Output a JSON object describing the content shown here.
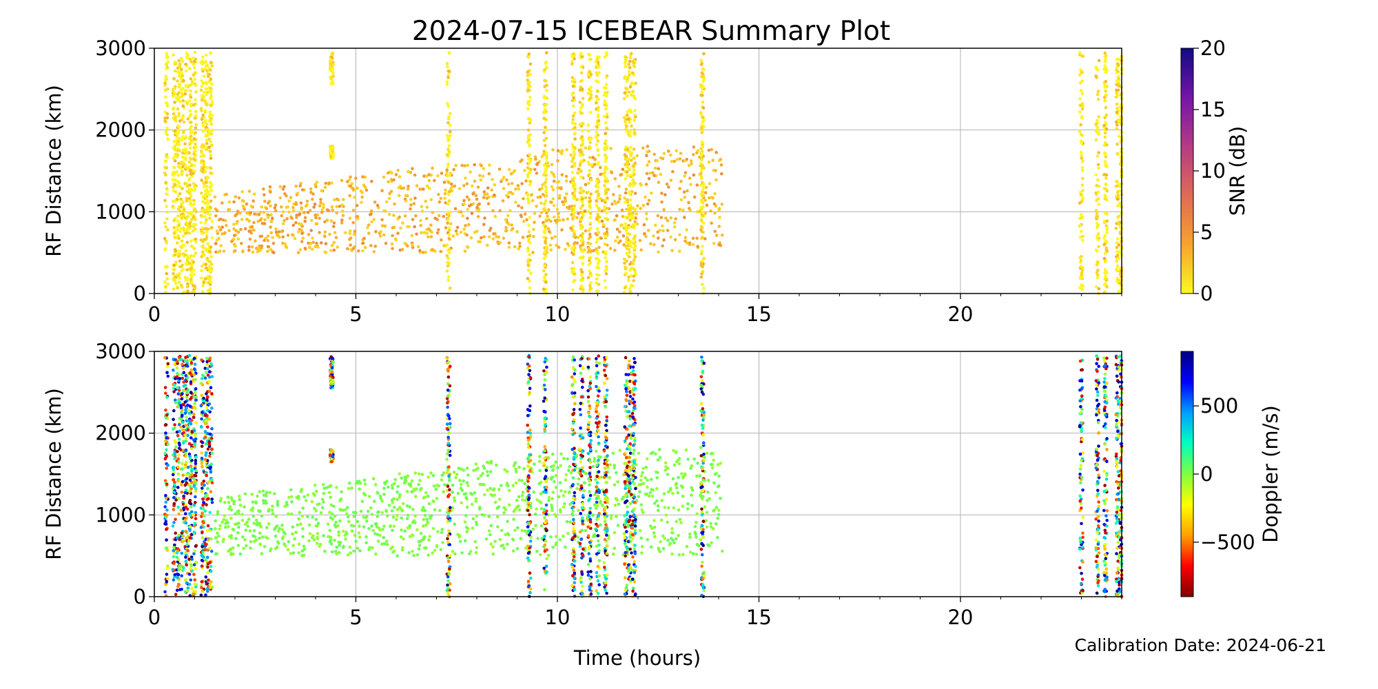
{
  "figure": {
    "title": "2024-07-15 ICEBEAR Summary Plot",
    "xlabel": "Time (hours)",
    "footnote": "Calibration Date: 2024-06-21"
  },
  "chart_data": [
    {
      "type": "scatter",
      "name": "snr-panel",
      "xlabel": "",
      "ylabel": "RF Distance (km)",
      "xlim": [
        0,
        24
      ],
      "ylim": [
        0,
        3000
      ],
      "xticks": [
        "0",
        "5",
        "10",
        "15",
        "20"
      ],
      "yticks": [
        "0",
        "1000",
        "2000",
        "3000"
      ],
      "grid": true,
      "colorbar": {
        "label": "SNR (dB)",
        "range": [
          0,
          20
        ],
        "ticks": [
          "0",
          "5",
          "10",
          "15",
          "20"
        ],
        "colormap": [
          "#fcf820",
          "#f6a32e",
          "#df6a57",
          "#b43c85",
          "#7415a6",
          "#110b83"
        ]
      },
      "points_description": "Echoes per time/range; dense vertical streaks at listed hours spanning 0-3000 km, scattered echoes 300-1800 km between 1.5 and 14 h.",
      "dense_streaks_hours": [
        0.3,
        0.5,
        0.6,
        0.7,
        0.8,
        0.9,
        1.0,
        1.2,
        1.3,
        1.4,
        4.4,
        7.3,
        9.3,
        9.7,
        10.4,
        10.6,
        10.8,
        11.0,
        11.2,
        11.7,
        11.8,
        11.9,
        13.6,
        23.0,
        23.4,
        23.6,
        23.9,
        24.0
      ],
      "scatter_range": {
        "hours": [
          1.5,
          14.1
        ],
        "km": [
          300,
          1800
        ]
      }
    },
    {
      "type": "scatter",
      "name": "doppler-panel",
      "xlabel": "Time (hours)",
      "ylabel": "RF Distance (km)",
      "xlim": [
        0,
        24
      ],
      "ylim": [
        0,
        3000
      ],
      "xticks": [
        "0",
        "5",
        "10",
        "15",
        "20"
      ],
      "yticks": [
        "0",
        "1000",
        "2000",
        "3000"
      ],
      "grid": true,
      "colorbar": {
        "label": "Doppler (m/s)",
        "range": [
          -900,
          900
        ],
        "ticks": [
          "−500",
          "0",
          "500"
        ],
        "tick_values": [
          -500,
          0,
          500
        ],
        "colormap": [
          "#800000",
          "#ff0000",
          "#ffa000",
          "#ffff00",
          "#80ff40",
          "#00ffc0",
          "#00a0ff",
          "#0000ff",
          "#000080"
        ]
      },
      "points_description": "Same echoes as SNR panel colored by Doppler; diffuse echoes mostly near 0 m/s (green), dense streaks mixed positive/negative.",
      "dense_streaks_hours": [
        0.3,
        0.5,
        0.6,
        0.7,
        0.8,
        0.9,
        1.0,
        1.2,
        1.3,
        1.4,
        4.4,
        7.3,
        9.3,
        9.7,
        10.4,
        10.6,
        10.8,
        11.0,
        11.2,
        11.7,
        11.8,
        11.9,
        13.6,
        23.0,
        23.4,
        23.6,
        23.9,
        24.0
      ],
      "scatter_range": {
        "hours": [
          1.5,
          14.1
        ],
        "km": [
          300,
          1800
        ]
      }
    }
  ]
}
